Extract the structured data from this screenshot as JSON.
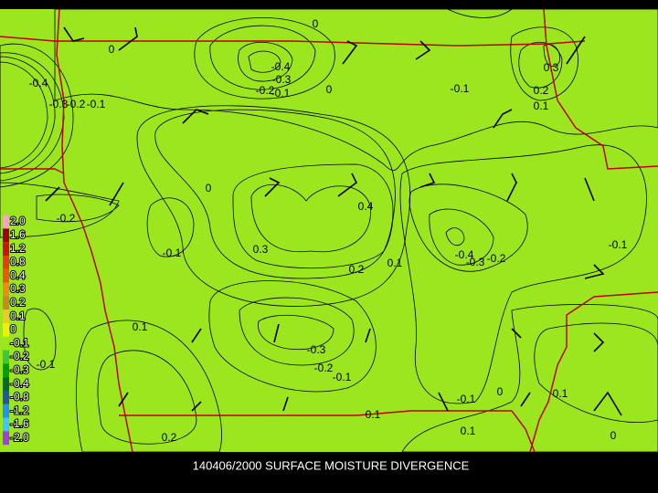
{
  "map": {
    "title": "140406/2000 SURFACE MOISTURE DIVERGENCE",
    "legend": [
      {
        "label": "2.0",
        "color": "#ff9ec8"
      },
      {
        "label": "1.6",
        "color": "#a00000"
      },
      {
        "label": "1.2",
        "color": "#d01010"
      },
      {
        "label": "0.8",
        "color": "#e83c0c"
      },
      {
        "label": "0.4",
        "color": "#ea5a0c"
      },
      {
        "label": "0.3",
        "color": "#f08c14"
      },
      {
        "label": "0.2",
        "color": "#c88c1e"
      },
      {
        "label": "0.1",
        "color": "#f0c828"
      },
      {
        "label": "0",
        "color": "#f0f000"
      },
      {
        "label": "-0.1",
        "color": "#9be61e"
      },
      {
        "label": "-0.2",
        "color": "#3cc83c"
      },
      {
        "label": "-0.3",
        "color": "#00a000"
      },
      {
        "label": "-0.4",
        "color": "#006c28"
      },
      {
        "label": "-0.8",
        "color": "#1e5aa0"
      },
      {
        "label": "-1.2",
        "color": "#1e96f0"
      },
      {
        "label": "-1.6",
        "color": "#3cc8ff"
      },
      {
        "label": "-2.0",
        "color": "#a040e0"
      }
    ],
    "contour_labels": [
      "0",
      "0",
      "-0.4",
      "-0.3",
      "-0.2",
      "-0.1",
      "0",
      "-0.1",
      "0.3",
      "0.2",
      "0.1",
      "-0.4",
      "-0.3",
      "-0.2",
      "-0.1",
      "0",
      "0.4",
      "-0.2",
      "-0.1",
      "0.3",
      "0.2",
      "0.1",
      "-0.4",
      "-0.3",
      "-0.2",
      "-0.1",
      "0.1",
      "-0.1",
      "-0.3",
      "-0.2",
      "-0.1",
      "0",
      "-0.1",
      "0.1",
      "0.1",
      "0.1",
      "0.2",
      "0"
    ]
  }
}
